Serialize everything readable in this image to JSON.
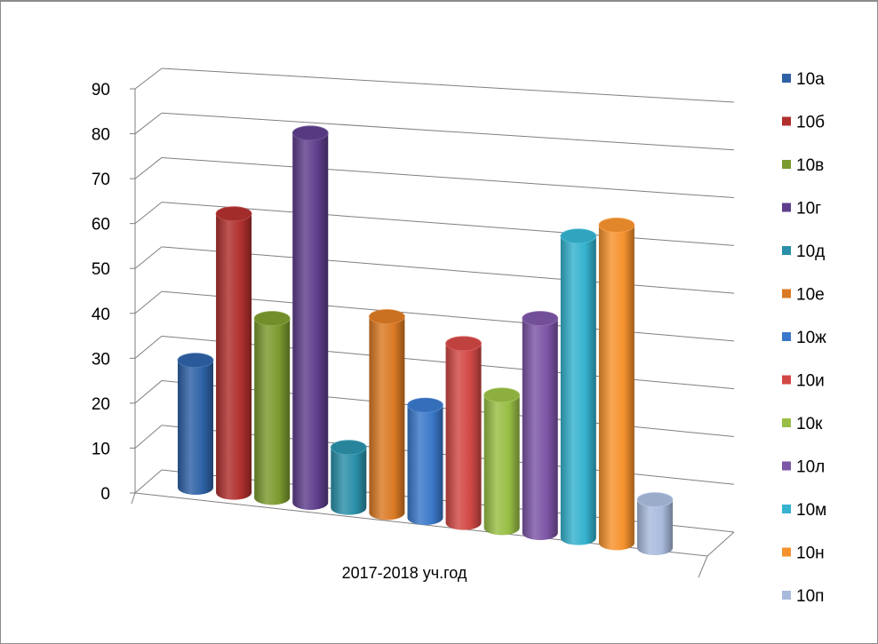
{
  "chart_data": {
    "type": "bar",
    "style": "3d-cylinder",
    "categories": [
      "2017-2018 уч.год"
    ],
    "series": [
      {
        "name": "10а",
        "values": [
          28
        ],
        "color": "#2E62A6"
      },
      {
        "name": "10б",
        "values": [
          61
        ],
        "color": "#B0302E"
      },
      {
        "name": "10в",
        "values": [
          39
        ],
        "color": "#7B9A2F"
      },
      {
        "name": "10г",
        "values": [
          80
        ],
        "color": "#5E3E8C"
      },
      {
        "name": "10д",
        "values": [
          13
        ],
        "color": "#2A8FA8"
      },
      {
        "name": "10е",
        "values": [
          42
        ],
        "color": "#DB7A24"
      },
      {
        "name": "10ж",
        "values": [
          24
        ],
        "color": "#3A78C9"
      },
      {
        "name": "10и",
        "values": [
          38
        ],
        "color": "#D14845"
      },
      {
        "name": "10к",
        "values": [
          28
        ],
        "color": "#98BE45"
      },
      {
        "name": "10л",
        "values": [
          45
        ],
        "color": "#7D55A6"
      },
      {
        "name": "10м",
        "values": [
          63
        ],
        "color": "#35B2CE"
      },
      {
        "name": "10н",
        "values": [
          66
        ],
        "color": "#F6922E"
      },
      {
        "name": "10п",
        "values": [
          10
        ],
        "color": "#A9BBDD"
      }
    ],
    "yticks": [
      "0",
      "10",
      "20",
      "30",
      "40",
      "50",
      "60",
      "70",
      "80",
      "90"
    ],
    "ylim": [
      0,
      90
    ],
    "grid": true,
    "legend_position": "right",
    "title": "",
    "xlabel": "",
    "ylabel": ""
  }
}
